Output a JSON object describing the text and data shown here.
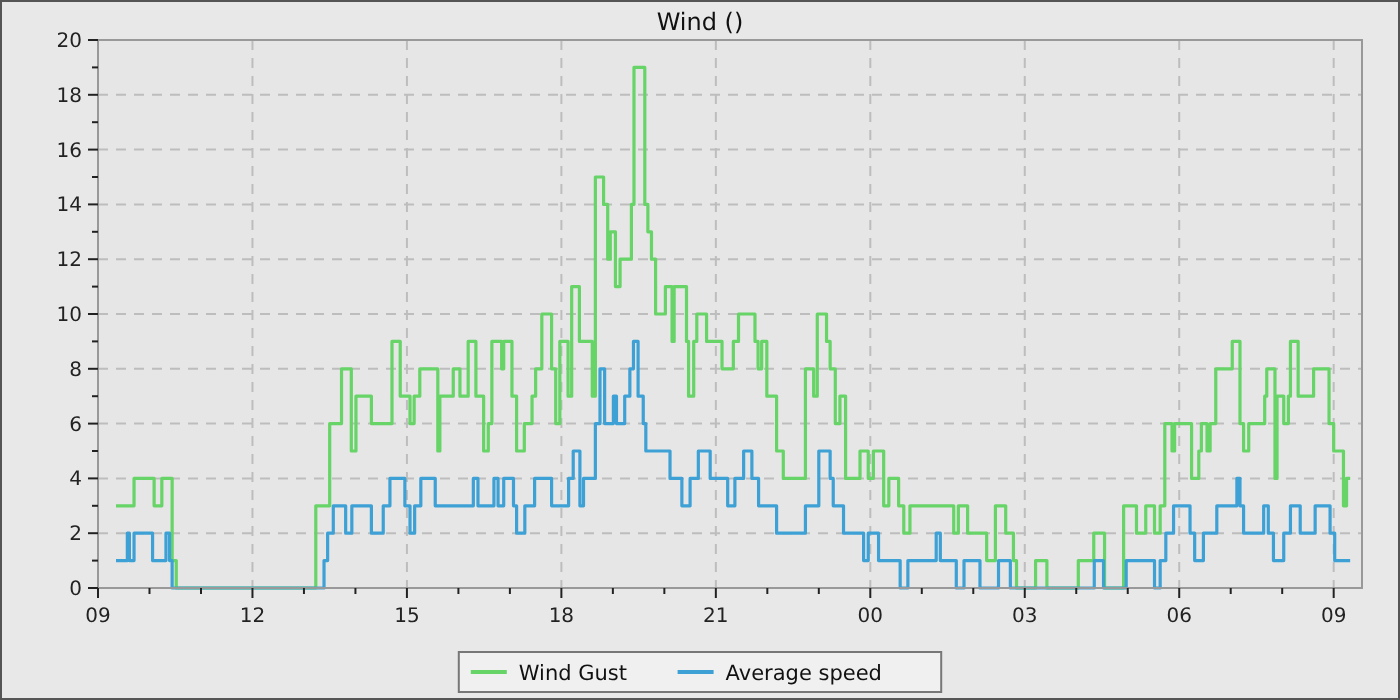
{
  "chart_data": {
    "type": "step",
    "title": "Wind ()",
    "grid": true,
    "legend": "bottom",
    "marker": "none",
    "line_style": "solid",
    "xlim": [
      9,
      33.55
    ],
    "xticks": [
      {
        "value": 9,
        "label": "09"
      },
      {
        "value": 10,
        "label": null
      },
      {
        "value": 11,
        "label": null
      },
      12,
      {
        "value": 13,
        "label": null
      },
      {
        "value": 14,
        "label": null
      },
      15,
      {
        "value": 16,
        "label": null
      },
      {
        "value": 17,
        "label": null
      },
      18,
      {
        "value": 19,
        "label": null
      },
      {
        "value": 20,
        "label": null
      },
      21,
      {
        "value": 22,
        "label": null
      },
      {
        "value": 23,
        "label": null
      },
      {
        "value": 24,
        "label": "00"
      },
      {
        "value": 25,
        "label": null
      },
      {
        "value": 26,
        "label": null
      },
      {
        "value": 27,
        "label": "03"
      },
      {
        "value": 28,
        "label": null
      },
      {
        "value": 29,
        "label": null
      },
      {
        "value": 30,
        "label": "06"
      },
      {
        "value": 31,
        "label": null
      },
      {
        "value": 32,
        "label": null
      },
      {
        "value": 33,
        "label": "09"
      }
    ],
    "ylim": [
      0,
      20
    ],
    "yticks": [
      0,
      {
        "value": 1,
        "label": null
      },
      2,
      {
        "value": 3,
        "label": null
      },
      4,
      {
        "value": 5,
        "label": null
      },
      6,
      {
        "value": 7,
        "label": null
      },
      8,
      {
        "value": 9,
        "label": null
      },
      10,
      {
        "value": 11,
        "label": null
      },
      12,
      {
        "value": 13,
        "label": null
      },
      14,
      {
        "value": 15,
        "label": null
      },
      16,
      {
        "value": 17,
        "label": null
      },
      18,
      {
        "value": 19,
        "label": null
      },
      20
    ],
    "series": [
      {
        "name": "Wind Gust",
        "color": "#66d466",
        "x": [
          9.35,
          9.7,
          10.09,
          10.24,
          10.44,
          10.52,
          13.23,
          13.5,
          13.73,
          13.92,
          14.01,
          14.31,
          14.71,
          14.87,
          15.06,
          15.14,
          15.25,
          15.6,
          15.64,
          15.9,
          16.03,
          16.19,
          16.34,
          16.49,
          16.58,
          16.65,
          16.84,
          16.88,
          17.04,
          17.13,
          17.28,
          17.43,
          17.5,
          17.62,
          17.81,
          17.89,
          17.97,
          18.13,
          18.2,
          18.35,
          18.6,
          18.66,
          18.82,
          18.9,
          18.95,
          19.05,
          19.14,
          19.36,
          19.41,
          19.62,
          19.68,
          19.75,
          19.83,
          20.02,
          20.15,
          20.19,
          20.43,
          20.47,
          20.57,
          20.63,
          20.82,
          21.12,
          21.34,
          21.44,
          21.76,
          21.82,
          21.89,
          21.99,
          22.18,
          22.31,
          22.74,
          22.9,
          22.97,
          23.15,
          23.22,
          23.32,
          23.41,
          23.52,
          23.8,
          23.96,
          24.06,
          24.26,
          24.36,
          24.55,
          24.65,
          24.77,
          25.62,
          25.71,
          25.89,
          26.26,
          26.43,
          26.63,
          26.78,
          26.84,
          27.21,
          27.43,
          28.04,
          28.34,
          28.55,
          28.92,
          29.17,
          29.35,
          29.52,
          29.63,
          29.72,
          29.86,
          29.91,
          30.24,
          30.38,
          30.43,
          30.54,
          30.6,
          30.71,
          31.03,
          31.18,
          31.25,
          31.35,
          31.66,
          31.7,
          31.86,
          31.9,
          32.03,
          32.12,
          32.16,
          32.31,
          32.61,
          32.91,
          33.0,
          33.19,
          33.25,
          33.32
        ],
        "values": [
          3,
          4,
          3,
          4,
          1,
          0,
          3,
          6,
          8,
          5,
          7,
          6,
          9,
          7,
          6,
          7,
          8,
          5,
          7,
          8,
          7,
          9,
          7,
          5,
          6,
          9,
          8,
          9,
          7,
          5,
          6,
          7,
          8,
          10,
          8,
          6,
          9,
          7,
          11,
          9,
          7,
          15,
          14,
          12,
          13,
          11,
          12,
          14,
          19,
          14,
          13,
          12,
          10,
          11,
          9,
          11,
          9,
          7,
          9,
          10,
          9,
          8,
          9,
          10,
          9,
          8,
          9,
          7,
          5,
          4,
          8,
          7,
          10,
          9,
          8,
          6,
          7,
          4,
          5,
          4,
          5,
          3,
          4,
          3,
          2,
          3,
          2,
          3,
          2,
          1,
          3,
          2,
          1,
          0,
          1,
          0,
          1,
          2,
          0,
          3,
          2,
          3,
          2,
          3,
          6,
          5,
          6,
          4,
          5,
          6,
          5,
          6,
          8,
          9,
          6,
          5,
          6,
          7,
          8,
          4,
          7,
          6,
          7,
          9,
          7,
          8,
          6,
          5,
          3,
          4,
          4
        ]
      },
      {
        "name": "Average speed",
        "color": "#3ea1d6",
        "x": [
          9.35,
          9.57,
          9.61,
          9.7,
          10.06,
          10.32,
          10.39,
          10.44,
          13.39,
          13.46,
          13.57,
          13.81,
          13.93,
          14.31,
          14.54,
          14.67,
          14.96,
          15.06,
          15.15,
          15.27,
          15.55,
          16.29,
          16.38,
          16.69,
          16.77,
          16.88,
          17.07,
          17.13,
          17.29,
          17.48,
          17.81,
          18.14,
          18.23,
          18.36,
          18.43,
          18.66,
          18.75,
          18.84,
          19.01,
          19.07,
          19.23,
          19.33,
          19.4,
          19.49,
          19.59,
          19.64,
          20.11,
          20.34,
          20.5,
          20.66,
          20.89,
          21.23,
          21.37,
          21.54,
          21.7,
          21.83,
          22.18,
          22.74,
          23.0,
          23.22,
          23.28,
          23.48,
          23.87,
          23.96,
          24.16,
          24.58,
          24.73,
          25.28,
          25.36,
          25.67,
          25.82,
          26.13,
          26.49,
          26.72,
          28.35,
          28.53,
          28.97,
          29.52,
          29.63,
          29.74,
          29.89,
          30.21,
          30.3,
          30.47,
          30.73,
          31.12,
          31.18,
          31.25,
          31.64,
          31.73,
          31.83,
          32.03,
          32.16,
          32.35,
          32.64,
          32.93,
          33.02,
          33.32
        ],
        "values": [
          1,
          2,
          1,
          2,
          1,
          2,
          1,
          0,
          1,
          2,
          3,
          2,
          3,
          2,
          3,
          4,
          3,
          2,
          3,
          4,
          3,
          4,
          3,
          4,
          3,
          4,
          3,
          2,
          3,
          4,
          3,
          4,
          5,
          3,
          4,
          6,
          8,
          6,
          7,
          6,
          7,
          8,
          9,
          7,
          6,
          5,
          4,
          3,
          4,
          5,
          4,
          3,
          4,
          5,
          4,
          3,
          2,
          3,
          5,
          4,
          3,
          2,
          1,
          2,
          1,
          0,
          1,
          2,
          1,
          0,
          1,
          0,
          1,
          0,
          1,
          0,
          1,
          0,
          1,
          2,
          3,
          2,
          1,
          2,
          3,
          4,
          3,
          2,
          3,
          2,
          1,
          2,
          3,
          2,
          3,
          2,
          1,
          1
        ]
      }
    ]
  }
}
